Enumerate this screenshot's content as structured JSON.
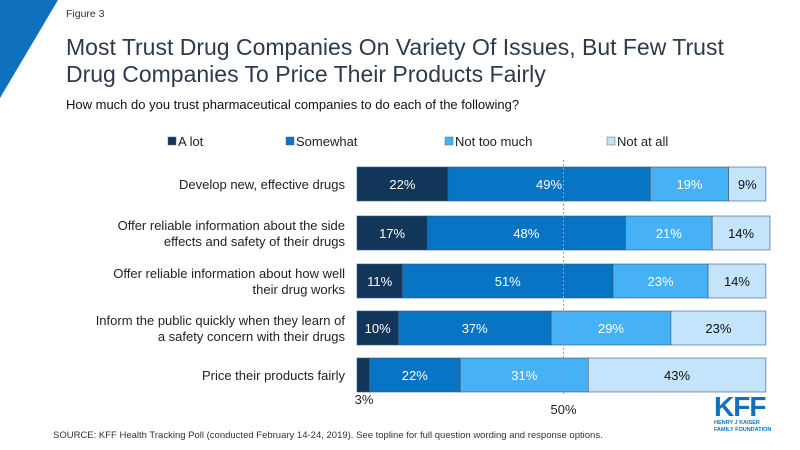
{
  "figure_label": "Figure 3",
  "title_lines": [
    "Most Trust Drug Companies On Variety Of Issues, But Few Trust",
    "Drug Companies To Price Their Products Fairly"
  ],
  "source": "SOURCE: KFF Health Tracking Poll (conducted February 14-24, 2019). See topline for full question wording and response options.",
  "logo": {
    "main": "KFF",
    "line1": "HENRY J KAISER",
    "line2": "FAMILY FOUNDATION"
  },
  "colors": {
    "accent": "#0f71be",
    "a_lot": "#12365a",
    "somewhat": "#0874c4",
    "not_too_much": "#46b1f5",
    "not_at_all": "#c3e4fb"
  },
  "chart_data": {
    "type": "bar",
    "orientation": "horizontal-stacked",
    "title": "Most Trust Drug Companies On Variety Of Issues, But Few Trust Drug Companies To Price Their Products Fairly",
    "subtitle": "How much do you trust pharmaceutical companies to do each of the following?",
    "categories": [
      [
        "Develop new, effective drugs"
      ],
      [
        "Offer reliable information about the side",
        "effects and safety of their drugs"
      ],
      [
        "Offer reliable information about how well",
        "their drug works"
      ],
      [
        "Inform the public quickly when they learn of",
        "a safety concern with their drugs"
      ],
      [
        "Price their products fairly"
      ]
    ],
    "series": [
      {
        "name": "A lot",
        "values": [
          22,
          17,
          11,
          10,
          3
        ],
        "labels": [
          "22%",
          "17%",
          "11%",
          "10%",
          "3%"
        ]
      },
      {
        "name": "Somewhat",
        "values": [
          49,
          48,
          51,
          37,
          22
        ],
        "labels": [
          "49%",
          "48%",
          "51%",
          "37%",
          "22%"
        ]
      },
      {
        "name": "Not too much",
        "values": [
          19,
          21,
          23,
          29,
          31
        ],
        "labels": [
          "19%",
          "21%",
          "23%",
          "29%",
          "31%"
        ]
      },
      {
        "name": "Not at all",
        "values": [
          9,
          14,
          14,
          23,
          43
        ],
        "labels": [
          "9%",
          "14%",
          "14%",
          "23%",
          "43%"
        ]
      }
    ],
    "reference_line": {
      "value": 50,
      "label": "50%",
      "style": "dotted"
    },
    "xlim": [
      0,
      100
    ],
    "legend": "top",
    "grid": false
  }
}
